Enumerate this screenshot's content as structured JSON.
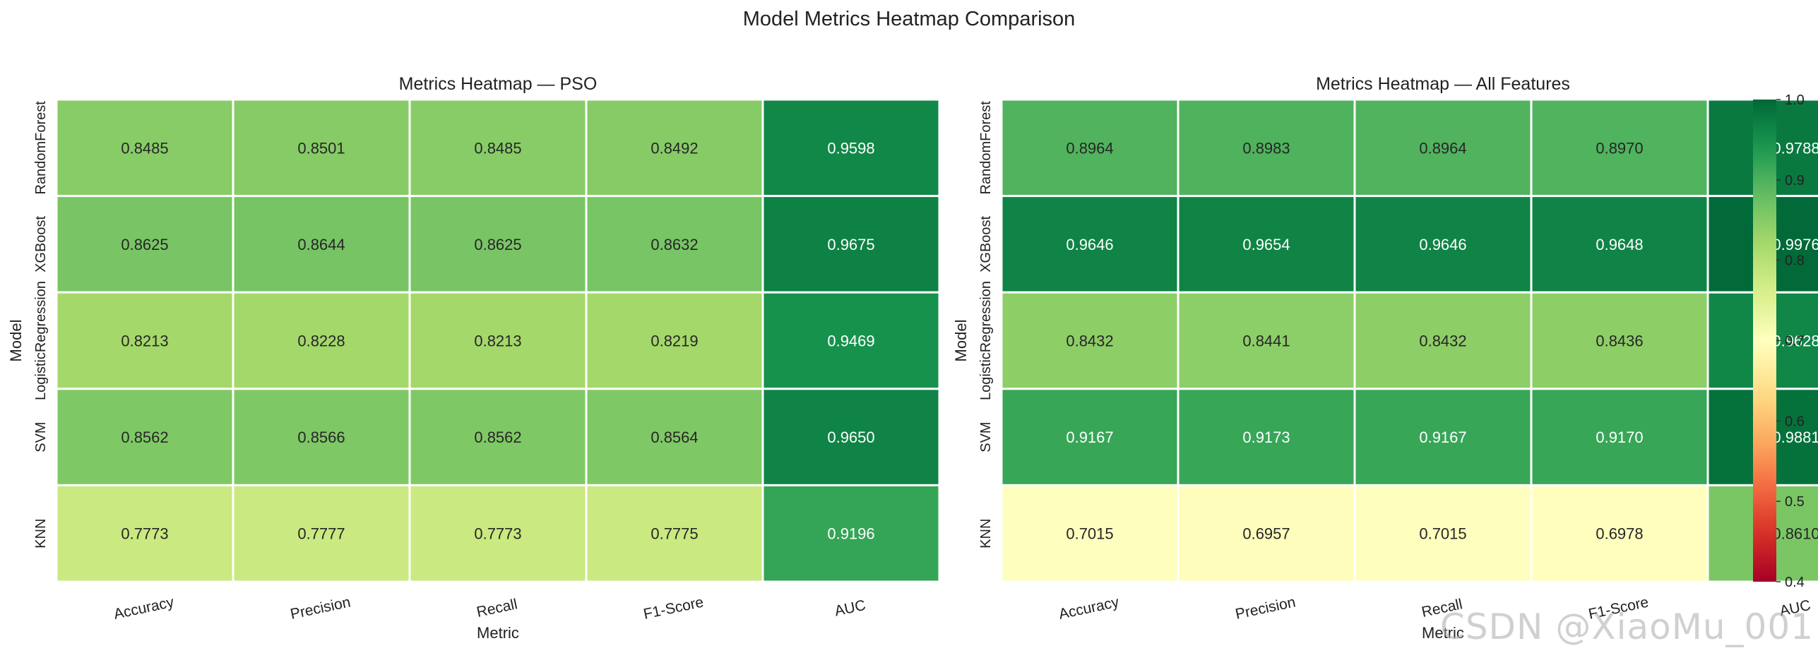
{
  "figure_title": "Model Metrics Heatmap Comparison",
  "watermark": "CSDN @XiaoMu_001",
  "chart_data": [
    {
      "type": "heatmap",
      "title": "Metrics Heatmap — PSO",
      "xlabel": "Metric",
      "ylabel": "Model",
      "columns": [
        "Accuracy",
        "Precision",
        "Recall",
        "F1-Score",
        "AUC"
      ],
      "rows": [
        "RandomForest",
        "XGBoost",
        "LogisticRegression",
        "SVM",
        "KNN"
      ],
      "values": [
        [
          0.8485,
          0.8501,
          0.8485,
          0.8492,
          0.9598
        ],
        [
          0.8625,
          0.8644,
          0.8625,
          0.8632,
          0.9675
        ],
        [
          0.8213,
          0.8228,
          0.8213,
          0.8219,
          0.9469
        ],
        [
          0.8562,
          0.8566,
          0.8562,
          0.8564,
          0.965
        ],
        [
          0.7773,
          0.7777,
          0.7773,
          0.7775,
          0.9196
        ]
      ]
    },
    {
      "type": "heatmap",
      "title": "Metrics Heatmap — All Features",
      "xlabel": "Metric",
      "ylabel": "Model",
      "columns": [
        "Accuracy",
        "Precision",
        "Recall",
        "F1-Score",
        "AUC"
      ],
      "rows": [
        "RandomForest",
        "XGBoost",
        "LogisticRegression",
        "SVM",
        "KNN"
      ],
      "values": [
        [
          0.8964,
          0.8983,
          0.8964,
          0.897,
          0.9788
        ],
        [
          0.9646,
          0.9654,
          0.9646,
          0.9648,
          0.9976
        ],
        [
          0.8432,
          0.8441,
          0.8432,
          0.8436,
          0.9628
        ],
        [
          0.9167,
          0.9173,
          0.9167,
          0.917,
          0.9881
        ],
        [
          0.7015,
          0.6957,
          0.7015,
          0.6978,
          0.861
        ]
      ]
    }
  ],
  "colorbar": {
    "colormap": "RdYlGn",
    "range": [
      0.4,
      1.0
    ],
    "ticks": [
      "0.4",
      "0.5",
      "0.6",
      "0.7",
      "0.8",
      "0.9",
      "1.0"
    ]
  }
}
